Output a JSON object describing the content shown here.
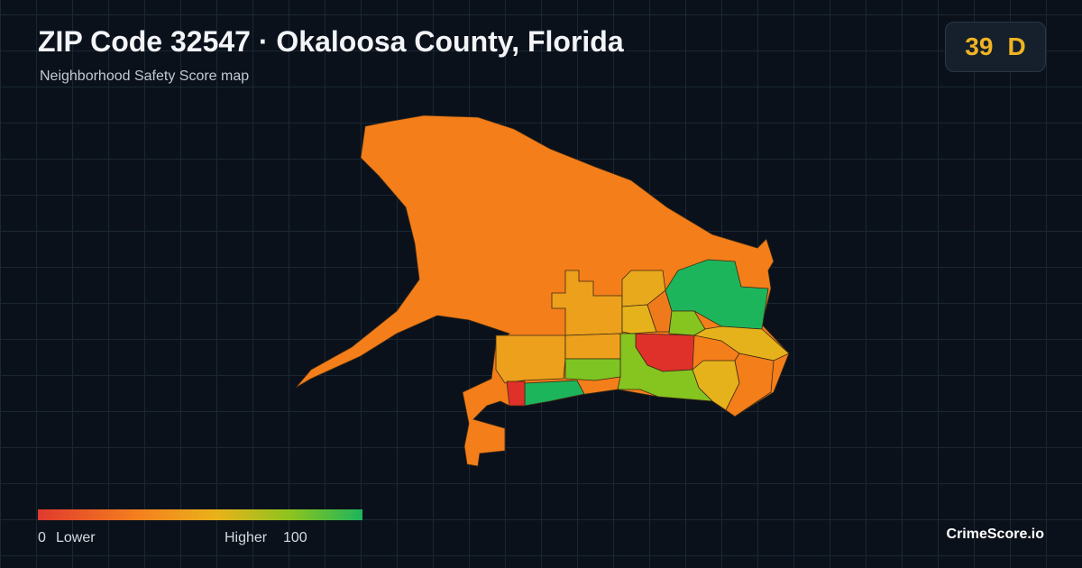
{
  "header": {
    "title": "ZIP Code 32547 · Okaloosa County, Florida",
    "subtitle": "Neighborhood Safety Score map",
    "score": "39",
    "grade": "D"
  },
  "legend": {
    "min": "0",
    "min_label": "Lower",
    "max_label": "Higher",
    "max": "100"
  },
  "brand": "CrimeScore.io"
}
